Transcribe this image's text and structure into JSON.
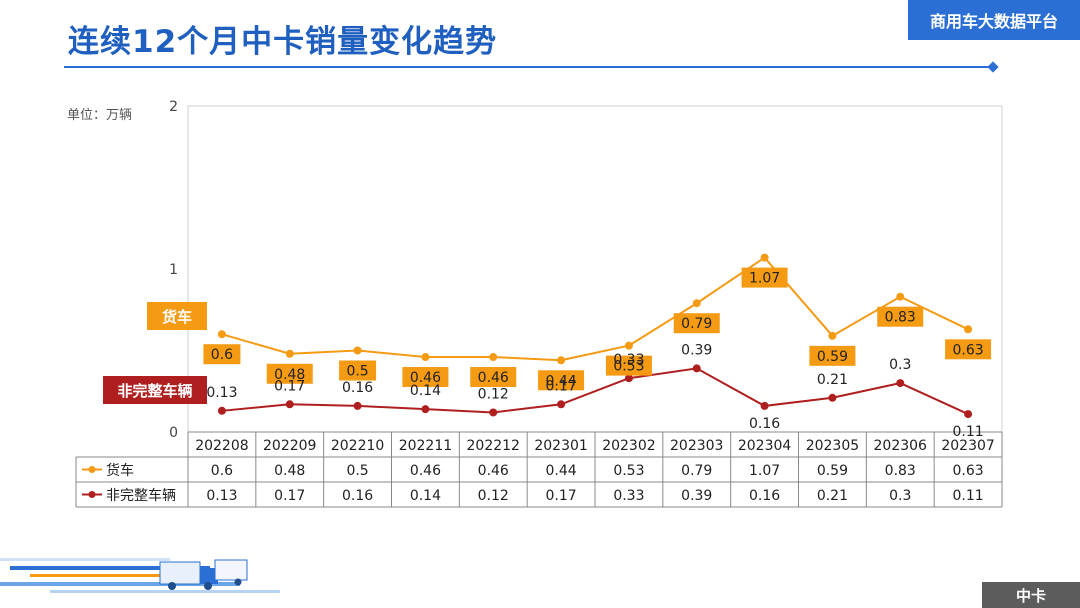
{
  "header": {
    "title": "连续12个月中卡销量变化趋势",
    "brand": "商用车大数据平台"
  },
  "unit_label": "单位：万辆",
  "section_tag": "中卡",
  "colors": {
    "accent_blue": "#2b6fd4",
    "truck_series": "#f59a13",
    "incomplete_series": "#b01f1f"
  },
  "chart_data": {
    "type": "line",
    "x": [
      "202208",
      "202209",
      "202210",
      "202211",
      "202212",
      "202301",
      "202302",
      "202303",
      "202304",
      "202305",
      "202306",
      "202307"
    ],
    "series": [
      {
        "name": "货车",
        "values": [
          0.6,
          0.48,
          0.5,
          0.46,
          0.46,
          0.44,
          0.53,
          0.79,
          1.07,
          0.59,
          0.83,
          0.63
        ]
      },
      {
        "name": "非完整车辆",
        "values": [
          0.13,
          0.17,
          0.16,
          0.14,
          0.12,
          0.17,
          0.33,
          0.39,
          0.16,
          0.21,
          0.3,
          0.11
        ]
      }
    ],
    "y_ticks": [
      "0",
      "1",
      "2"
    ],
    "ylim": [
      0,
      2
    ],
    "grid": false,
    "legend": "data-table-below-and-left-labels"
  }
}
